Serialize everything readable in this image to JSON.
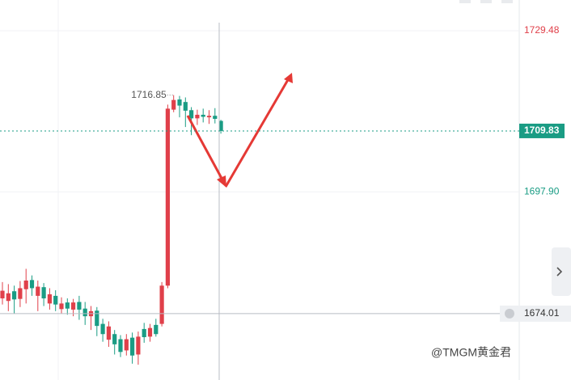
{
  "chart_data": {
    "type": "candlestick",
    "open": [
      1677.0,
      1676.5,
      1678.4,
      1676.9,
      1678.8,
      1680.6,
      1677.5,
      1679.2,
      1676.0,
      1677.5,
      1674.9,
      1676.2,
      1674.8,
      1676.3,
      1675.0,
      1673.5,
      1674.6,
      1672.0,
      1668.9,
      1670.0,
      1669.0,
      1666.8,
      1669.3,
      1666.0,
      1671.0,
      1669.5,
      1671.8,
      1672.0,
      1679.5,
      1714.0,
      1716.0,
      1715.5,
      1713.9,
      1712.3,
      1713.0,
      1712.5,
      1712.8,
      1711.8
    ],
    "high": [
      1680.2,
      1679.8,
      1679.5,
      1680.4,
      1682.8,
      1681.5,
      1680.5,
      1680.0,
      1679.0,
      1678.6,
      1677.2,
      1677.0,
      1676.9,
      1677.5,
      1676.3,
      1675.5,
      1675.3,
      1673.0,
      1672.5,
      1670.8,
      1669.8,
      1670.0,
      1670.3,
      1670.5,
      1672.2,
      1672.0,
      1673.0,
      1680.2,
      1715.0,
      1716.85,
      1716.7,
      1716.4,
      1714.5,
      1714.0,
      1714.2,
      1713.9,
      1714.3,
      1712.0
    ],
    "low": [
      1675.8,
      1674.5,
      1674.0,
      1675.3,
      1676.0,
      1677.5,
      1674.5,
      1675.5,
      1674.8,
      1674.5,
      1674.0,
      1673.8,
      1673.5,
      1672.8,
      1671.8,
      1670.8,
      1669.6,
      1668.5,
      1667.5,
      1666.0,
      1665.5,
      1665.8,
      1664.2,
      1664.0,
      1668.3,
      1668.5,
      1669.5,
      1671.5,
      1679.0,
      1713.5,
      1712.5,
      1710.6,
      1709.0,
      1711.0,
      1711.5,
      1711.2,
      1711.3,
      1709.3
    ],
    "close": [
      1678.5,
      1678.0,
      1676.8,
      1679.0,
      1680.5,
      1679.0,
      1679.3,
      1677.0,
      1677.8,
      1675.8,
      1676.0,
      1675.0,
      1676.2,
      1674.8,
      1673.5,
      1674.5,
      1671.6,
      1670.0,
      1671.5,
      1668.0,
      1666.5,
      1669.0,
      1665.8,
      1669.5,
      1669.4,
      1671.2,
      1670.0,
      1679.5,
      1714.2,
      1715.9,
      1714.8,
      1713.8,
      1712.3,
      1713.0,
      1712.6,
      1712.8,
      1712.2,
      1709.83
    ],
    "up_color": "#e0404a",
    "down_color": "#1a9c84",
    "ylim": [
      1661,
      1735.5
    ],
    "yticks": [
      {
        "value": 1697.9,
        "label": "1697.90"
      },
      1729.48
    ],
    "last_price": 1709.83,
    "crosshair_price": 1674.01,
    "watermark": "@TMGM黄金君"
  }
}
